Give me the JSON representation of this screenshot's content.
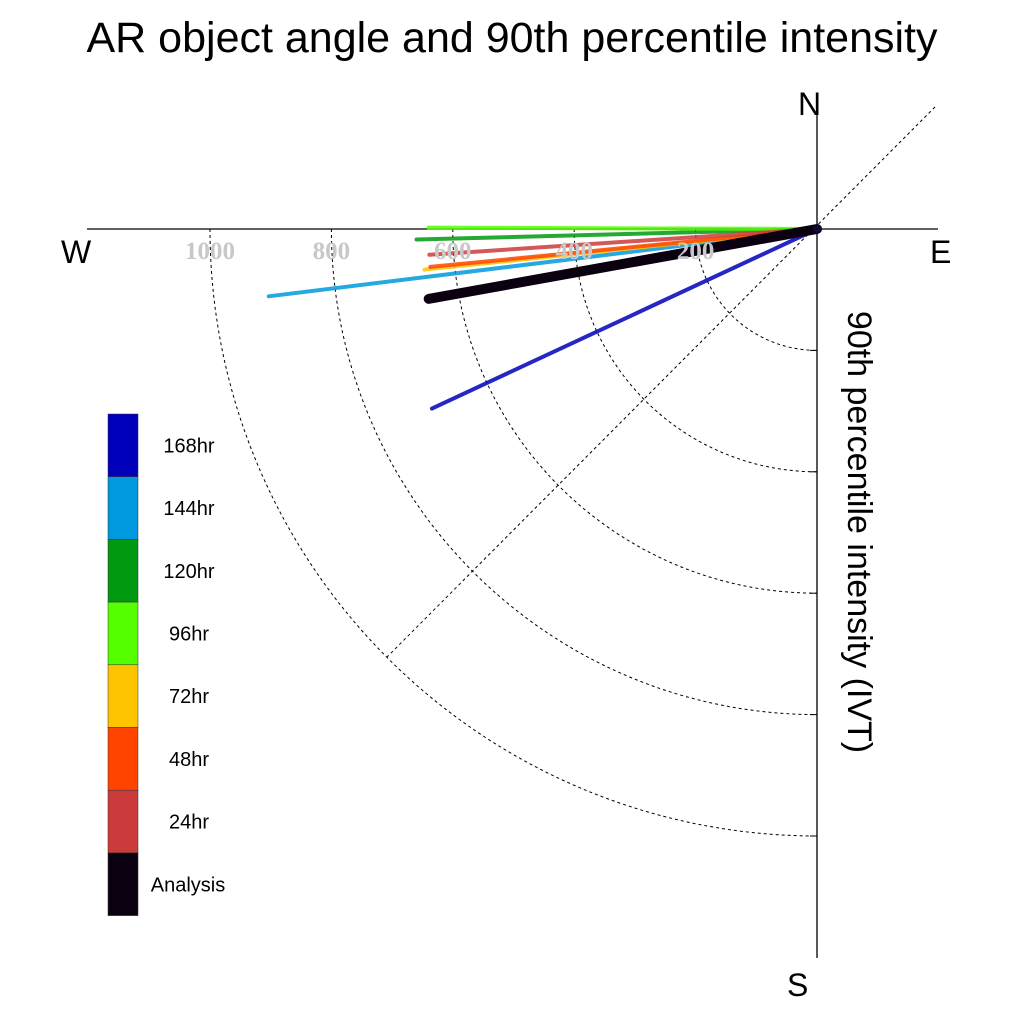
{
  "chart_data": {
    "type": "polar-vector",
    "title": "AR object angle and 90th percentile intensity",
    "radial_label": "90th percentile intensity (IVT)",
    "compass": {
      "north": "N",
      "south": "S",
      "east": "E",
      "west": "W"
    },
    "ring_values": [
      200,
      400,
      600,
      800,
      1000
    ],
    "ring_tick_labels": [
      "200",
      "400",
      "600",
      "800",
      "1000"
    ],
    "rmax": 1200,
    "series": [
      {
        "name": "168hr",
        "color": "#0000bb",
        "angle_deg": -25.0,
        "intensity": 700
      },
      {
        "name": "144hr",
        "color": "#0099dd",
        "angle_deg": -7.0,
        "intensity": 910
      },
      {
        "name": "120hr",
        "color": "#009911",
        "angle_deg": -1.5,
        "intensity": 660
      },
      {
        "name": "96hr",
        "color": "#55ff00",
        "angle_deg": 0.2,
        "intensity": 640
      },
      {
        "name": "72hr",
        "color": "#ffc400",
        "angle_deg": -5.9,
        "intensity": 650
      },
      {
        "name": "48hr",
        "color": "#ff4400",
        "angle_deg": -5.6,
        "intensity": 640
      },
      {
        "name": "24hr",
        "color": "#cc3b3b",
        "angle_deg": -3.8,
        "intensity": 640
      },
      {
        "name": "Analysis",
        "color": "#0a0010",
        "angle_deg": -10.2,
        "intensity": 650
      }
    ]
  }
}
